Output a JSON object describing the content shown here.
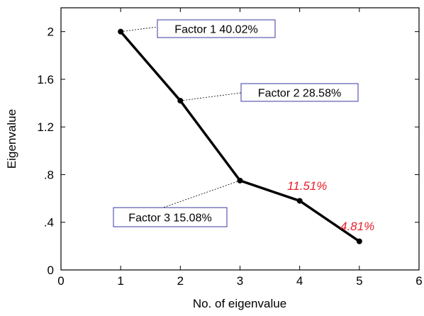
{
  "chart_data": {
    "type": "line",
    "xlabel": "No. of eigenvalue",
    "ylabel": "Eigenvalue",
    "xlim": [
      0,
      6
    ],
    "ylim": [
      0,
      2.2
    ],
    "xticks": [
      "0",
      "1",
      "2",
      "3",
      "4",
      "5",
      "6"
    ],
    "yticks": [
      "0",
      ".4",
      ".8",
      "1.2",
      "1.6",
      "2"
    ],
    "x": [
      1,
      2,
      3,
      4,
      5
    ],
    "series": [
      {
        "values": [
          2.0,
          1.42,
          0.75,
          0.58,
          0.24
        ]
      }
    ],
    "annotations": [
      {
        "text": "Factor 1 40.02%",
        "point_index": 0,
        "boxed": true
      },
      {
        "text": "Factor 2 28.58%",
        "point_index": 1,
        "boxed": true
      },
      {
        "text": "Factor 3 15.08%",
        "point_index": 2,
        "boxed": true
      },
      {
        "text": "11.51%",
        "point_index": 3,
        "boxed": false,
        "color": "#e8202a"
      },
      {
        "text": "4.81%",
        "point_index": 4,
        "boxed": false,
        "color": "#e8202a"
      }
    ],
    "grid": false
  }
}
